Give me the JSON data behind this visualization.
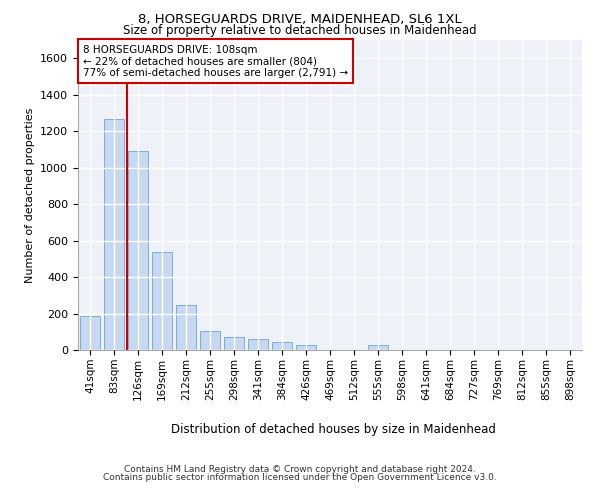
{
  "title1": "8, HORSEGUARDS DRIVE, MAIDENHEAD, SL6 1XL",
  "title2": "Size of property relative to detached houses in Maidenhead",
  "xlabel": "Distribution of detached houses by size in Maidenhead",
  "ylabel": "Number of detached properties",
  "footer1": "Contains HM Land Registry data © Crown copyright and database right 2024.",
  "footer2": "Contains public sector information licensed under the Open Government Licence v3.0.",
  "annotation_line1": "8 HORSEGUARDS DRIVE: 108sqm",
  "annotation_line2": "← 22% of detached houses are smaller (804)",
  "annotation_line3": "77% of semi-detached houses are larger (2,791) →",
  "bar_color": "#c6d9f0",
  "bar_edge_color": "#7bafd4",
  "line_color": "#cc0000",
  "background_color": "#ffffff",
  "plot_bg_color": "#eef2f8",
  "grid_color": "#ffffff",
  "ylim": [
    0,
    1700
  ],
  "yticks": [
    0,
    200,
    400,
    600,
    800,
    1000,
    1200,
    1400,
    1600
  ],
  "categories": [
    "41sqm",
    "83sqm",
    "126sqm",
    "169sqm",
    "212sqm",
    "255sqm",
    "298sqm",
    "341sqm",
    "384sqm",
    "426sqm",
    "469sqm",
    "512sqm",
    "555sqm",
    "598sqm",
    "641sqm",
    "684sqm",
    "727sqm",
    "769sqm",
    "812sqm",
    "855sqm",
    "898sqm"
  ],
  "values": [
    185,
    1265,
    1090,
    535,
    248,
    105,
    72,
    58,
    42,
    30,
    0,
    0,
    30,
    0,
    0,
    0,
    0,
    0,
    0,
    0,
    0
  ],
  "property_bin_index": 1.55
}
